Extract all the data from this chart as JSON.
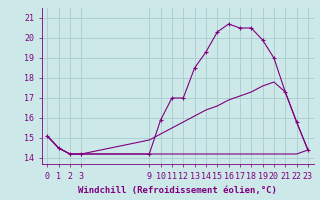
{
  "xlabel": "Windchill (Refroidissement éolien,°C)",
  "background_color": "#cce8e8",
  "grid_color": "#aacccc",
  "line_color": "#800080",
  "xlabel_color": "#800080",
  "xlim": [
    -0.5,
    23.5
  ],
  "ylim": [
    13.7,
    21.5
  ],
  "yticks": [
    14,
    15,
    16,
    17,
    18,
    19,
    20,
    21
  ],
  "xticks": [
    0,
    1,
    2,
    3,
    9,
    10,
    11,
    12,
    13,
    14,
    15,
    16,
    17,
    18,
    19,
    20,
    21,
    22,
    23
  ],
  "curve1_x": [
    0,
    1,
    2,
    3,
    9,
    10,
    11,
    12,
    13,
    14,
    15,
    16,
    17,
    18,
    19,
    20,
    21,
    22,
    23
  ],
  "curve1_y": [
    15.1,
    14.5,
    14.2,
    14.2,
    14.2,
    15.9,
    17.0,
    17.0,
    18.5,
    19.3,
    20.3,
    20.7,
    20.5,
    20.5,
    19.9,
    19.0,
    17.3,
    15.8,
    14.4
  ],
  "curve2_x": [
    0,
    1,
    2,
    3,
    9,
    10,
    11,
    12,
    13,
    14,
    15,
    16,
    17,
    18,
    19,
    20,
    21,
    22,
    23
  ],
  "curve2_y": [
    15.1,
    14.5,
    14.2,
    14.2,
    14.2,
    14.2,
    14.2,
    14.2,
    14.2,
    14.2,
    14.2,
    14.2,
    14.2,
    14.2,
    14.2,
    14.2,
    14.2,
    14.2,
    14.4
  ],
  "curve3_x": [
    0,
    1,
    2,
    3,
    9,
    10,
    11,
    12,
    13,
    14,
    15,
    16,
    17,
    18,
    19,
    20,
    21,
    22,
    23
  ],
  "curve3_y": [
    15.1,
    14.5,
    14.2,
    14.2,
    14.9,
    15.2,
    15.5,
    15.8,
    16.1,
    16.4,
    16.6,
    16.9,
    17.1,
    17.3,
    17.6,
    17.8,
    17.3,
    15.8,
    14.4
  ],
  "xlabel_fontsize": 6.5,
  "tick_fontsize": 6.0
}
